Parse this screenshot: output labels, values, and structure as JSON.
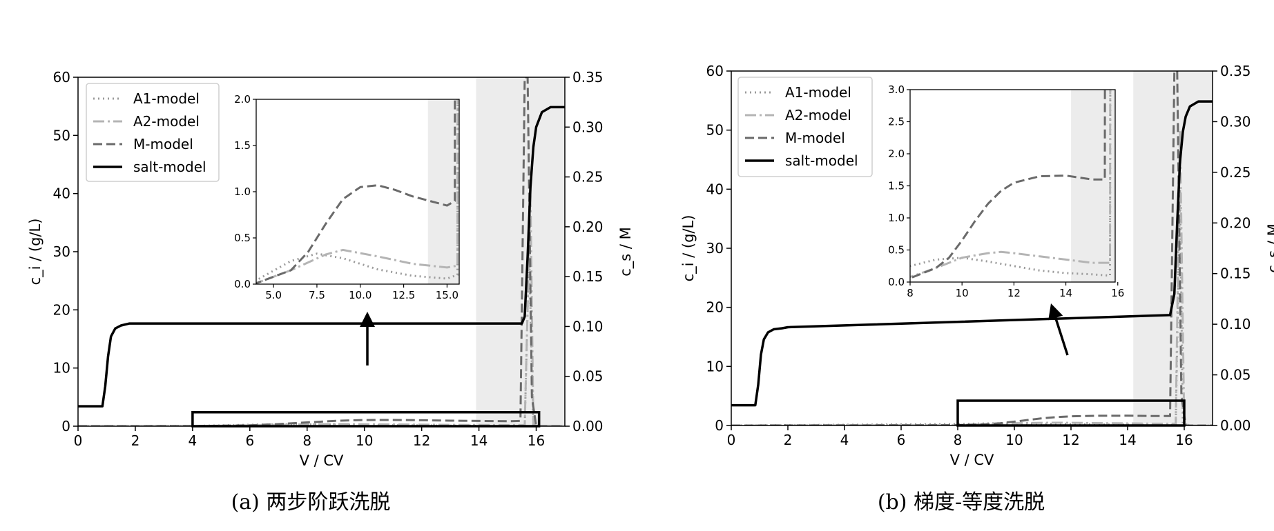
{
  "chart_data": [
    {
      "type": "line",
      "caption": "(a) 两步阶跃洗脱",
      "xlabel": "V / CV",
      "ylabel_left": "c_i / (g/L)",
      "ylabel_right": "c_s / M",
      "xlim": [
        0,
        17
      ],
      "ylim_left": [
        0,
        60
      ],
      "ylim_right": [
        0,
        0.35
      ],
      "xticks": [
        "0",
        "2",
        "4",
        "6",
        "8",
        "10",
        "12",
        "14",
        "16"
      ],
      "yticks_left": [
        "0",
        "10",
        "20",
        "30",
        "40",
        "50",
        "60"
      ],
      "yticks_right": [
        "0.00",
        "0.05",
        "0.10",
        "0.15",
        "0.20",
        "0.25",
        "0.30",
        "0.35"
      ],
      "shaded_x": [
        13.9,
        17
      ],
      "legend": [
        "A1-model",
        "A2-model",
        "M-model",
        "salt-model"
      ],
      "series": [
        {
          "name": "A1-model",
          "axis": "left",
          "x": [
            0,
            4,
            6,
            7.5,
            9,
            11,
            13,
            15,
            15.6,
            15.75,
            15.9,
            16.1,
            17
          ],
          "y": [
            0,
            0.04,
            0.25,
            0.33,
            0.28,
            0.16,
            0.09,
            0.06,
            0.1,
            30,
            0.3,
            0,
            0
          ]
        },
        {
          "name": "A2-model",
          "axis": "left",
          "x": [
            0,
            4,
            6,
            8,
            9,
            11,
            13,
            15,
            15.6,
            15.8,
            15.9,
            16.1,
            17
          ],
          "y": [
            0,
            0.01,
            0.15,
            0.32,
            0.37,
            0.3,
            0.22,
            0.18,
            0.2,
            40,
            0.4,
            0,
            0
          ]
        },
        {
          "name": "M-model",
          "axis": "left",
          "x": [
            0,
            4,
            6,
            7,
            8,
            9,
            10,
            11,
            12,
            13,
            14,
            15,
            15.45,
            15.6,
            15.7,
            15.85,
            16,
            17
          ],
          "y": [
            0,
            0.01,
            0.15,
            0.35,
            0.65,
            0.92,
            1.05,
            1.07,
            1.02,
            0.95,
            0.9,
            0.85,
            0.9,
            60,
            60,
            5,
            0,
            0
          ]
        },
        {
          "name": "salt-model",
          "axis": "right",
          "x": [
            0,
            0.85,
            0.95,
            1.05,
            1.15,
            1.3,
            1.5,
            1.8,
            2.2,
            4,
            8,
            12,
            15.5,
            15.6,
            15.7,
            15.8,
            15.9,
            16,
            16.2,
            16.5,
            17
          ],
          "y": [
            0.02,
            0.02,
            0.04,
            0.07,
            0.09,
            0.098,
            0.101,
            0.103,
            0.103,
            0.103,
            0.103,
            0.103,
            0.103,
            0.11,
            0.17,
            0.24,
            0.28,
            0.3,
            0.315,
            0.32,
            0.32
          ]
        }
      ],
      "zoom_box": {
        "x": [
          4,
          16.1
        ],
        "y": [
          0,
          2.4
        ]
      },
      "inset": {
        "xlim": [
          4,
          15.7
        ],
        "ylim": [
          0,
          2
        ],
        "xticks": [
          "5.0",
          "7.5",
          "10.0",
          "12.5",
          "15.0"
        ],
        "yticks": [
          "0.0",
          "0.5",
          "1.0",
          "1.5",
          "2.0"
        ],
        "shaded_x": [
          13.9,
          15.7
        ]
      }
    },
    {
      "type": "line",
      "caption": "(b) 梯度-等度洗脱",
      "xlabel": "V / CV",
      "ylabel_left": "c_i / (g/L)",
      "ylabel_right": "c_s / M",
      "xlim": [
        0,
        17
      ],
      "ylim_left": [
        0,
        60
      ],
      "ylim_right": [
        0,
        0.35
      ],
      "xticks": [
        "0",
        "2",
        "4",
        "6",
        "8",
        "10",
        "12",
        "14",
        "16"
      ],
      "yticks_left": [
        "0",
        "10",
        "20",
        "30",
        "40",
        "50",
        "60"
      ],
      "yticks_right": [
        "0.00",
        "0.05",
        "0.10",
        "0.15",
        "0.20",
        "0.25",
        "0.30",
        "0.35"
      ],
      "shaded_x": [
        14.2,
        17
      ],
      "legend": [
        "A1-model",
        "A2-model",
        "M-model",
        "salt-model"
      ],
      "series": [
        {
          "name": "A1-model",
          "axis": "left",
          "x": [
            0,
            8,
            9,
            10,
            11,
            12,
            13,
            14,
            15,
            15.7,
            15.85,
            15.95,
            16.2,
            17
          ],
          "y": [
            0,
            0.25,
            0.35,
            0.38,
            0.32,
            0.25,
            0.18,
            0.14,
            0.12,
            0.1,
            40,
            0.3,
            0,
            0
          ]
        },
        {
          "name": "A2-model",
          "axis": "left",
          "x": [
            0,
            8,
            9,
            10,
            11,
            11.5,
            12,
            13,
            14,
            15,
            15.7,
            15.85,
            16,
            16.2,
            17
          ],
          "y": [
            0,
            0.08,
            0.22,
            0.38,
            0.45,
            0.47,
            0.45,
            0.4,
            0.35,
            0.3,
            0.3,
            50,
            0.3,
            0,
            0
          ]
        },
        {
          "name": "M-model",
          "axis": "left",
          "x": [
            0,
            8,
            9,
            9.5,
            10,
            10.5,
            11,
            11.5,
            12,
            13,
            14,
            15,
            15.5,
            15.65,
            15.75,
            15.9,
            16.05,
            17
          ],
          "y": [
            0,
            0.06,
            0.22,
            0.38,
            0.65,
            0.95,
            1.22,
            1.42,
            1.55,
            1.65,
            1.66,
            1.6,
            1.6,
            60,
            60,
            5,
            0,
            0
          ]
        },
        {
          "name": "salt-model",
          "axis": "right",
          "x": [
            0,
            0.85,
            0.95,
            1.05,
            1.15,
            1.3,
            1.5,
            1.8,
            2,
            15.5,
            15.65,
            15.75,
            15.85,
            15.95,
            16.05,
            16.2,
            16.5,
            17
          ],
          "y": [
            0.02,
            0.02,
            0.04,
            0.07,
            0.085,
            0.092,
            0.095,
            0.096,
            0.097,
            0.109,
            0.13,
            0.2,
            0.26,
            0.29,
            0.305,
            0.315,
            0.32,
            0.32
          ]
        }
      ],
      "zoom_box": {
        "x": [
          8,
          16
        ],
        "y": [
          0,
          4.2
        ]
      },
      "inset": {
        "xlim": [
          8,
          15.9
        ],
        "ylim": [
          0,
          3
        ],
        "xticks": [
          "8",
          "10",
          "12",
          "14",
          "16"
        ],
        "yticks": [
          "0.0",
          "0.5",
          "1.0",
          "1.5",
          "2.0",
          "2.5",
          "3.0"
        ],
        "shaded_x": [
          14.2,
          15.9
        ]
      }
    }
  ],
  "style": {
    "A1-model": {
      "color": "#9a9a9a",
      "dash": "2,5",
      "width": 3
    },
    "A2-model": {
      "color": "#b4b4b4",
      "dash": "16,5,3,5",
      "width": 3
    },
    "M-model": {
      "color": "#6a6a6a",
      "dash": "13,6",
      "width": 3
    },
    "salt-model": {
      "color": "#000000",
      "dash": "",
      "width": 3.5
    },
    "shade": "#ececec"
  }
}
